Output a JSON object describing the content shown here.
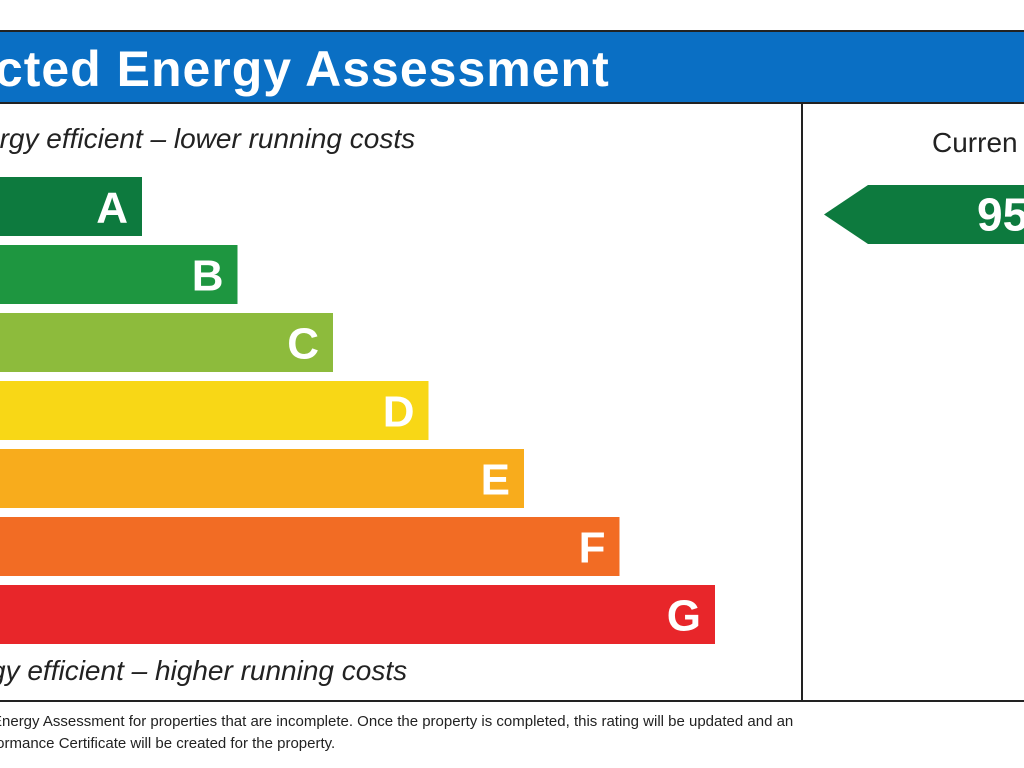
{
  "title": "icted Energy Assessment",
  "caption_top": "ergy efficient – lower running costs",
  "caption_bottom": "gy efficient – higher running costs",
  "current_label": "Curren",
  "footnote": "Energy Assessment for properties that are incomplete. Once the property is completed, this rating will be updated and an\nformance Certificate will be created for the property.",
  "chart_data": {
    "type": "bar",
    "orientation": "horizontal",
    "categories": [
      "A",
      "B",
      "C",
      "D",
      "E",
      "F",
      "G"
    ],
    "colors": [
      "#0d7a3e",
      "#1e9640",
      "#8dbb3c",
      "#f8d716",
      "#f8ac1c",
      "#f26c24",
      "#e8262a"
    ],
    "current_rating": {
      "value": "95",
      "band": "A",
      "color": "#0d7a3e"
    }
  }
}
